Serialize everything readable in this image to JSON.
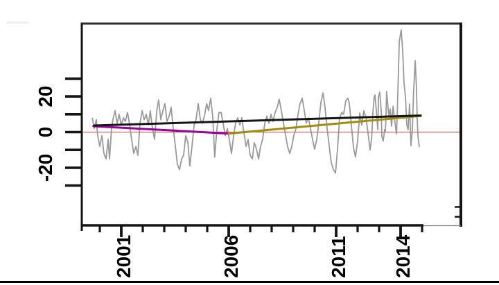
{
  "figure": {
    "background": "#ffffff",
    "bottom_rule_color": "#000000",
    "artifact_color": "#f0eeee"
  },
  "chart_data": {
    "type": "line",
    "title": "",
    "xlabel": "",
    "ylabel": "",
    "grid": false,
    "legend": false,
    "axis_color": "#151515",
    "top_border_color": "#2d2d2d",
    "thin_border_color": "#7a7a7a",
    "label_color": "#000000",
    "xlim": [
      1999.2,
      2016.7
    ],
    "ylim": [
      -52,
      61
    ],
    "x_axis": {
      "ticks_minor": [
        2000,
        2001,
        2002,
        2003,
        2004,
        2005,
        2006,
        2007,
        2008,
        2009,
        2010,
        2011,
        2012,
        2013,
        2014,
        2015
      ],
      "ticks_labeled": [
        2001,
        2006,
        2011,
        2014
      ],
      "tick_labels": [
        "2001",
        "2006",
        "2011",
        "2014"
      ],
      "label_rotation_deg": -90
    },
    "y_axis": {
      "ticks_minor": [
        30,
        10,
        -10,
        -30
      ],
      "ticks_labeled": [
        20,
        0,
        -20
      ],
      "tick_labels": [
        "20",
        "0",
        "-20"
      ],
      "label_rotation_deg": -90
    },
    "zero_line": {
      "value": 0,
      "color": "#dd6666",
      "width": 1.2
    },
    "right_spine_marks_values": [
      -42,
      -47.5
    ],
    "series": [
      {
        "name": "monthly-anomaly-series",
        "color": "#9a9a9a",
        "width": 1.8,
        "points": [
          [
            1999.65,
            8
          ],
          [
            1999.74,
            2
          ],
          [
            1999.84,
            7
          ],
          [
            1999.9,
            -2
          ],
          [
            2000.0,
            -8
          ],
          [
            2000.1,
            -2
          ],
          [
            2000.19,
            -12
          ],
          [
            2000.29,
            -15
          ],
          [
            2000.39,
            -4
          ],
          [
            2000.45,
            -15
          ],
          [
            2000.55,
            2
          ],
          [
            2000.61,
            7
          ],
          [
            2000.71,
            12
          ],
          [
            2000.81,
            5
          ],
          [
            2000.9,
            10
          ],
          [
            2001.0,
            4
          ],
          [
            2001.1,
            8
          ],
          [
            2001.19,
            6
          ],
          [
            2001.29,
            11
          ],
          [
            2001.39,
            4
          ],
          [
            2001.48,
            -4
          ],
          [
            2001.58,
            -12
          ],
          [
            2001.68,
            -8
          ],
          [
            2001.77,
            -13
          ],
          [
            2001.87,
            5
          ],
          [
            2001.97,
            12
          ],
          [
            2002.06,
            7
          ],
          [
            2002.16,
            10
          ],
          [
            2002.26,
            4
          ],
          [
            2002.35,
            12
          ],
          [
            2002.45,
            2
          ],
          [
            2002.55,
            -4
          ],
          [
            2002.65,
            12
          ],
          [
            2002.74,
            18
          ],
          [
            2002.84,
            7
          ],
          [
            2002.94,
            12
          ],
          [
            2003.03,
            16
          ],
          [
            2003.13,
            6
          ],
          [
            2003.23,
            9
          ],
          [
            2003.32,
            14
          ],
          [
            2003.42,
            2
          ],
          [
            2003.52,
            -8
          ],
          [
            2003.61,
            -18
          ],
          [
            2003.71,
            -21
          ],
          [
            2003.81,
            -15
          ],
          [
            2003.9,
            -13
          ],
          [
            2004.0,
            -2
          ],
          [
            2004.1,
            -6
          ],
          [
            2004.19,
            -19
          ],
          [
            2004.29,
            -8
          ],
          [
            2004.39,
            4
          ],
          [
            2004.48,
            7
          ],
          [
            2004.58,
            16
          ],
          [
            2004.68,
            7
          ],
          [
            2004.77,
            5
          ],
          [
            2004.87,
            9
          ],
          [
            2004.97,
            16
          ],
          [
            2005.06,
            12
          ],
          [
            2005.16,
            19
          ],
          [
            2005.26,
            8
          ],
          [
            2005.35,
            -14
          ],
          [
            2005.45,
            2
          ],
          [
            2005.55,
            11
          ],
          [
            2005.65,
            11
          ],
          [
            2005.74,
            5
          ],
          [
            2005.84,
            -2
          ],
          [
            2005.94,
            2
          ],
          [
            2006.03,
            -4
          ],
          [
            2006.13,
            -12
          ],
          [
            2006.23,
            -2
          ],
          [
            2006.32,
            5
          ],
          [
            2006.42,
            8
          ],
          [
            2006.52,
            4
          ],
          [
            2006.61,
            8
          ],
          [
            2006.71,
            -0.5
          ],
          [
            2006.81,
            -8
          ],
          [
            2006.9,
            -4
          ],
          [
            2007.0,
            -13
          ],
          [
            2007.1,
            -15
          ],
          [
            2007.19,
            -6
          ],
          [
            2007.29,
            -9.5
          ],
          [
            2007.39,
            -15
          ],
          [
            2007.48,
            -8
          ],
          [
            2007.58,
            -4
          ],
          [
            2007.68,
            5
          ],
          [
            2007.77,
            9
          ],
          [
            2007.87,
            5
          ],
          [
            2007.97,
            10
          ],
          [
            2008.06,
            6
          ],
          [
            2008.16,
            11
          ],
          [
            2008.26,
            14
          ],
          [
            2008.35,
            18.5
          ],
          [
            2008.45,
            12
          ],
          [
            2008.55,
            5
          ],
          [
            2008.65,
            -2
          ],
          [
            2008.74,
            -8
          ],
          [
            2008.84,
            -12
          ],
          [
            2008.94,
            -8
          ],
          [
            2009.03,
            -2
          ],
          [
            2009.13,
            2
          ],
          [
            2009.23,
            10
          ],
          [
            2009.32,
            16
          ],
          [
            2009.42,
            19
          ],
          [
            2009.52,
            12
          ],
          [
            2009.61,
            5
          ],
          [
            2009.71,
            8
          ],
          [
            2009.81,
            2
          ],
          [
            2009.9,
            -4
          ],
          [
            2010.0,
            -9.5
          ],
          [
            2010.1,
            -4
          ],
          [
            2010.19,
            5
          ],
          [
            2010.29,
            16.5
          ],
          [
            2010.39,
            22
          ],
          [
            2010.48,
            14
          ],
          [
            2010.58,
            2
          ],
          [
            2010.68,
            -8
          ],
          [
            2010.77,
            -17
          ],
          [
            2010.87,
            -21
          ],
          [
            2010.97,
            -23
          ],
          [
            2011.06,
            -10
          ],
          [
            2011.16,
            8
          ],
          [
            2011.26,
            11
          ],
          [
            2011.35,
            10
          ],
          [
            2011.45,
            17.7
          ],
          [
            2011.55,
            19
          ],
          [
            2011.61,
            16.5
          ],
          [
            2011.71,
            4
          ],
          [
            2011.81,
            -8.8
          ],
          [
            2011.9,
            -14
          ],
          [
            2012.0,
            -5
          ],
          [
            2012.1,
            10.7
          ],
          [
            2012.19,
            4
          ],
          [
            2012.29,
            11.9
          ],
          [
            2012.39,
            8
          ],
          [
            2012.48,
            0
          ],
          [
            2012.58,
            -10
          ],
          [
            2012.65,
            -3.7
          ],
          [
            2012.71,
            10.7
          ],
          [
            2012.77,
            19.6
          ],
          [
            2012.81,
            20.8
          ],
          [
            2012.87,
            11.9
          ],
          [
            2012.94,
            1.4
          ],
          [
            2012.97,
            19.6
          ],
          [
            2013.03,
            22.4
          ],
          [
            2013.1,
            11.9
          ],
          [
            2013.13,
            -2.5
          ],
          [
            2013.19,
            -5
          ],
          [
            2013.26,
            1.4
          ],
          [
            2013.29,
            0
          ],
          [
            2013.32,
            8
          ],
          [
            2013.35,
            22.8
          ],
          [
            2013.45,
            9
          ],
          [
            2013.52,
            13
          ],
          [
            2013.58,
            3.3
          ],
          [
            2013.65,
            14.6
          ],
          [
            2013.71,
            8
          ],
          [
            2013.81,
            -1
          ],
          [
            2013.84,
            8
          ],
          [
            2013.94,
            50.8
          ],
          [
            2014.03,
            57.4
          ],
          [
            2014.1,
            45
          ],
          [
            2014.16,
            27.4
          ],
          [
            2014.23,
            19.6
          ],
          [
            2014.29,
            4
          ],
          [
            2014.35,
            1.4
          ],
          [
            2014.42,
            15.8
          ],
          [
            2014.48,
            -7.6
          ],
          [
            2014.55,
            1.4
          ],
          [
            2014.61,
            23.5
          ],
          [
            2014.68,
            40
          ],
          [
            2014.74,
            24.7
          ],
          [
            2014.77,
            8
          ],
          [
            2014.81,
            -2.5
          ],
          [
            2014.87,
            -8.4
          ]
        ]
      },
      {
        "name": "trend-full-period",
        "color": "#151515",
        "width": 3,
        "points": [
          [
            1999.74,
            3.7
          ],
          [
            2014.94,
            9.3
          ]
        ]
      },
      {
        "name": "trend-1999-2006",
        "color": "#9c009c",
        "width": 3,
        "points": [
          [
            1999.7,
            3.3
          ],
          [
            2006.0,
            -0.8
          ]
        ]
      },
      {
        "name": "trend-2006-2015",
        "color": "#a18e08",
        "width": 3,
        "points": [
          [
            2006.0,
            -0.8
          ],
          [
            2014.94,
            9.1
          ]
        ]
      }
    ]
  }
}
